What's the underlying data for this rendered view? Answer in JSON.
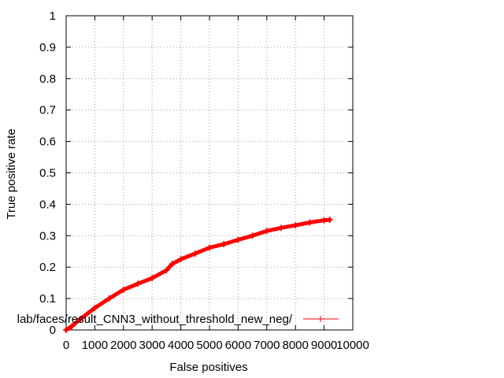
{
  "chart_data": {
    "type": "line",
    "xlabel": "False positives",
    "ylabel": "True positive rate",
    "xlim": [
      0,
      10000
    ],
    "ylim": [
      0,
      1
    ],
    "x_ticks": [
      0,
      1000,
      2000,
      3000,
      4000,
      5000,
      6000,
      7000,
      8000,
      9000,
      10000
    ],
    "y_ticks": [
      0,
      0.1,
      0.2,
      0.3,
      0.4,
      0.5,
      0.6,
      0.7,
      0.8,
      0.9,
      1
    ],
    "x_tick_labels": [
      "0",
      "1000",
      "2000",
      "3000",
      "4000",
      "5000",
      "6000",
      "7000",
      "8000",
      "9000",
      "10000"
    ],
    "y_tick_labels": [
      "0",
      "0.1",
      "0.2",
      "0.3",
      "0.4",
      "0.5",
      "0.6",
      "0.7",
      "0.8",
      "0.9",
      "1"
    ],
    "grid": true,
    "legend_position": "bottom-right",
    "series": [
      {
        "name": "lab/faces/result_CNN3_without_threshold_new_neg/",
        "color": "#ff0000",
        "marker": "plus",
        "x": [
          0,
          200,
          500,
          1000,
          1500,
          2000,
          2500,
          3000,
          3500,
          3700,
          4000,
          4500,
          5000,
          5500,
          6000,
          6500,
          7000,
          7500,
          8000,
          8500,
          9000,
          9200
        ],
        "y": [
          0,
          0.012,
          0.035,
          0.07,
          0.1,
          0.128,
          0.147,
          0.165,
          0.19,
          0.21,
          0.225,
          0.243,
          0.262,
          0.273,
          0.287,
          0.3,
          0.315,
          0.325,
          0.333,
          0.342,
          0.349,
          0.351
        ]
      }
    ]
  }
}
